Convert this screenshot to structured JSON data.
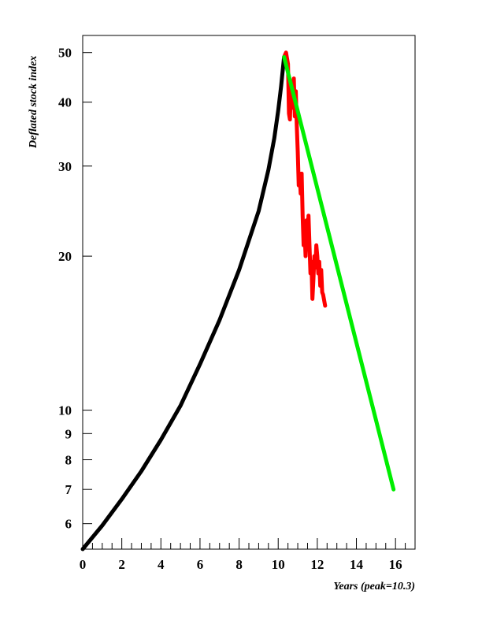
{
  "chart_data": {
    "type": "line",
    "title": "",
    "xlabel": "Years (peak=10.3)",
    "ylabel": "Deflated stock index",
    "xlim": [
      0,
      17
    ],
    "ylim": [
      5.35,
      54
    ],
    "yscale": "log",
    "grid": false,
    "x_ticks": [
      0,
      2,
      4,
      6,
      8,
      10,
      12,
      14,
      16
    ],
    "x_minor_step": 0.5,
    "y_ticks": [
      6,
      7,
      8,
      9,
      10,
      20,
      30,
      40,
      50
    ],
    "series": [
      {
        "color": "#000000",
        "points": [
          [
            0,
            5.35
          ],
          [
            1,
            5.95
          ],
          [
            2,
            6.7
          ],
          [
            3,
            7.6
          ],
          [
            4,
            8.75
          ],
          [
            5,
            10.2
          ],
          [
            6,
            12.3
          ],
          [
            7,
            15
          ],
          [
            8,
            18.8
          ],
          [
            9,
            24.5
          ],
          [
            9.5,
            29.5
          ],
          [
            9.8,
            34
          ],
          [
            10,
            38.5
          ],
          [
            10.15,
            43
          ],
          [
            10.3,
            49
          ]
        ]
      },
      {
        "color": "#ff0000",
        "points": [
          [
            10.3,
            49
          ],
          [
            10.4,
            50
          ],
          [
            10.5,
            47.5
          ],
          [
            10.55,
            38
          ],
          [
            10.6,
            37
          ],
          [
            10.65,
            42
          ],
          [
            10.7,
            39
          ],
          [
            10.75,
            41
          ],
          [
            10.8,
            44.5
          ],
          [
            10.85,
            37.5
          ],
          [
            10.9,
            42
          ],
          [
            10.95,
            36
          ],
          [
            11,
            32
          ],
          [
            11.05,
            27.5
          ],
          [
            11.1,
            29
          ],
          [
            11.15,
            26.5
          ],
          [
            11.2,
            29
          ],
          [
            11.25,
            24
          ],
          [
            11.3,
            21
          ],
          [
            11.35,
            22.5
          ],
          [
            11.4,
            20
          ],
          [
            11.45,
            23.5
          ],
          [
            11.5,
            22
          ],
          [
            11.55,
            24
          ],
          [
            11.6,
            21
          ],
          [
            11.65,
            18.5
          ],
          [
            11.7,
            19.5
          ],
          [
            11.75,
            16.5
          ],
          [
            11.8,
            18
          ],
          [
            11.85,
            20
          ],
          [
            11.9,
            19
          ],
          [
            11.95,
            21
          ],
          [
            12,
            20
          ],
          [
            12.05,
            18.5
          ],
          [
            12.1,
            19.5
          ],
          [
            12.15,
            17.5
          ],
          [
            12.2,
            18.8
          ],
          [
            12.25,
            17
          ],
          [
            12.3,
            16.8
          ],
          [
            12.4,
            16
          ]
        ]
      },
      {
        "color": "#00ee00",
        "points": [
          [
            10.3,
            49
          ],
          [
            15.9,
            7
          ]
        ]
      }
    ]
  }
}
